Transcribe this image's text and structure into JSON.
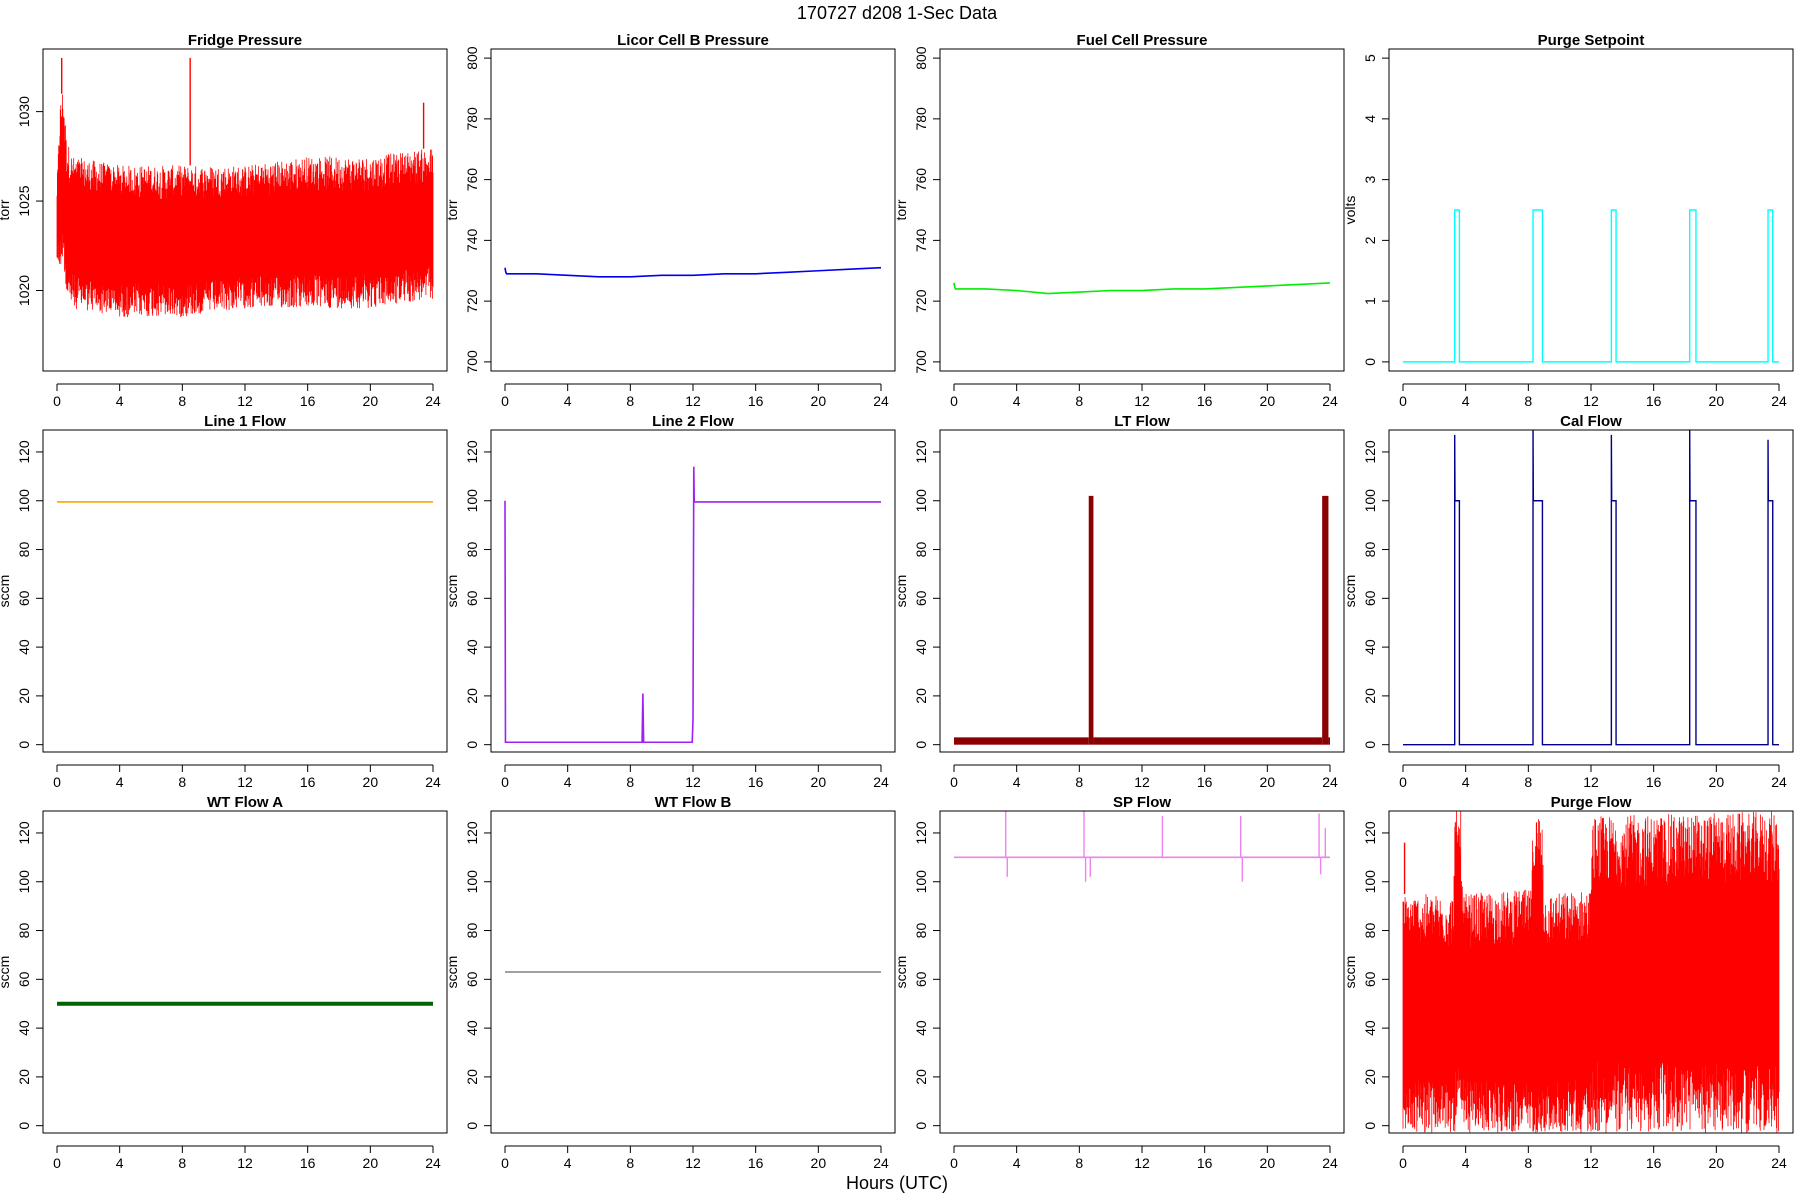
{
  "page": {
    "title": "170727   d208   1-Sec Data",
    "xlabel": "Hours (UTC)"
  },
  "chart_data": [
    {
      "type": "line",
      "title": "Fridge Pressure",
      "ylabel": "torr",
      "xlim": [
        0,
        24
      ],
      "xticks": [
        0,
        4,
        8,
        12,
        16,
        20,
        24
      ],
      "ylim": [
        1015.5,
        1033.5
      ],
      "yticks": [
        1020,
        1025,
        1030
      ],
      "color": "#ff0000",
      "style": "noise",
      "series": [
        {
          "x": [
            0,
            0.2,
            0.4,
            0.6,
            1,
            4,
            8,
            12,
            16,
            20,
            24
          ],
          "low": [
            1021.5,
            1021.0,
            1022.0,
            1019.5,
            1019.0,
            1018.5,
            1018.5,
            1019.0,
            1019.0,
            1019.0,
            1019.5
          ],
          "high": [
            1026.0,
            1030.5,
            1031.5,
            1028.5,
            1027.5,
            1027.0,
            1027.0,
            1027.0,
            1027.5,
            1027.5,
            1028.0
          ]
        }
      ],
      "spikes": [
        {
          "x": 8.5,
          "y": 1033.0
        },
        {
          "x": 0.3,
          "y": 1033.0
        },
        {
          "x": 23.4,
          "y": 1030.5
        }
      ]
    },
    {
      "type": "line",
      "title": "Licor Cell B Pressure",
      "ylabel": "torr",
      "xlim": [
        0,
        24
      ],
      "xticks": [
        0,
        4,
        8,
        12,
        16,
        20,
        24
      ],
      "ylim": [
        697,
        803
      ],
      "yticks": [
        700,
        720,
        740,
        760,
        780,
        800
      ],
      "color": "#0000ee",
      "style": "line",
      "series": [
        {
          "x": [
            0,
            0.05,
            0.1,
            2,
            4,
            6,
            8,
            10,
            12,
            14,
            16,
            18,
            20,
            22,
            24
          ],
          "y": [
            731,
            729.5,
            729,
            729,
            728.5,
            728,
            728,
            728.5,
            728.5,
            729,
            729,
            729.5,
            730,
            730.5,
            731
          ]
        }
      ]
    },
    {
      "type": "line",
      "title": "Fuel Cell Pressure",
      "ylabel": "torr",
      "xlim": [
        0,
        24
      ],
      "xticks": [
        0,
        4,
        8,
        12,
        16,
        20,
        24
      ],
      "ylim": [
        697,
        803
      ],
      "yticks": [
        700,
        720,
        740,
        760,
        780,
        800
      ],
      "color": "#00ee00",
      "style": "line",
      "series": [
        {
          "x": [
            0,
            0.05,
            0.1,
            2,
            4,
            6,
            8,
            10,
            12,
            14,
            16,
            18,
            20,
            22,
            24
          ],
          "y": [
            726,
            724.5,
            724,
            724,
            723.5,
            722.5,
            723,
            723.5,
            723.5,
            724,
            724,
            724.5,
            725,
            725.5,
            726
          ]
        }
      ]
    },
    {
      "type": "line",
      "title": "Purge Setpoint",
      "ylabel": "volts",
      "xlim": [
        0,
        24
      ],
      "xticks": [
        0,
        4,
        8,
        12,
        16,
        20,
        24
      ],
      "ylim": [
        -0.15,
        5.15
      ],
      "yticks": [
        0,
        1,
        2,
        3,
        4,
        5
      ],
      "color": "#00ffff",
      "style": "pulses",
      "base": 0,
      "pulses": [
        {
          "x0": 3.3,
          "x1": 3.6,
          "y": 2.5
        },
        {
          "x0": 8.3,
          "x1": 8.9,
          "y": 2.5
        },
        {
          "x0": 13.3,
          "x1": 13.6,
          "y": 2.5
        },
        {
          "x0": 18.3,
          "x1": 18.7,
          "y": 2.5
        },
        {
          "x0": 23.3,
          "x1": 23.6,
          "y": 2.5
        }
      ]
    },
    {
      "type": "line",
      "title": "Line 1 Flow",
      "ylabel": "sccm",
      "xlim": [
        0,
        24
      ],
      "xticks": [
        0,
        4,
        8,
        12,
        16,
        20,
        24
      ],
      "ylim": [
        -3,
        129
      ],
      "yticks": [
        0,
        20,
        40,
        60,
        80,
        100,
        120
      ],
      "color": "#ffa500",
      "style": "line",
      "series": [
        {
          "x": [
            0,
            24
          ],
          "y": [
            99.5,
            99.5
          ]
        }
      ]
    },
    {
      "type": "line",
      "title": "Line 2 Flow",
      "ylabel": "sccm",
      "xlim": [
        0,
        24
      ],
      "xticks": [
        0,
        4,
        8,
        12,
        16,
        20,
        24
      ],
      "ylim": [
        -3,
        129
      ],
      "yticks": [
        0,
        20,
        40,
        60,
        80,
        100,
        120
      ],
      "color": "#a020f0",
      "style": "line",
      "series": [
        {
          "x": [
            0,
            0.03,
            0.06,
            8.75,
            8.8,
            8.85,
            8.9,
            11.95,
            12.0,
            12.05,
            12.08,
            24
          ],
          "y": [
            100,
            1,
            1,
            1,
            21,
            1,
            1,
            1,
            10,
            114,
            99.5,
            99.5
          ]
        }
      ]
    },
    {
      "type": "line",
      "title": "LT Flow",
      "ylabel": "sccm",
      "xlim": [
        0,
        24
      ],
      "xticks": [
        0,
        4,
        8,
        12,
        16,
        20,
        24
      ],
      "ylim": [
        -3,
        129
      ],
      "yticks": [
        0,
        20,
        40,
        60,
        80,
        100,
        120
      ],
      "color": "#8b0000",
      "style": "band",
      "bands": [
        {
          "x0": 0,
          "x1": 8.6,
          "y0": 0,
          "y1": 3
        },
        {
          "x0": 8.6,
          "x1": 8.9,
          "y0": 0,
          "y1": 102
        },
        {
          "x0": 8.9,
          "x1": 23.5,
          "y0": 0,
          "y1": 3
        },
        {
          "x0": 23.5,
          "x1": 23.9,
          "y0": 0,
          "y1": 102
        },
        {
          "x0": 23.9,
          "x1": 24,
          "y0": 0,
          "y1": 3
        }
      ]
    },
    {
      "type": "line",
      "title": "Cal Flow",
      "ylabel": "sccm",
      "xlim": [
        0,
        24
      ],
      "xticks": [
        0,
        4,
        8,
        12,
        16,
        20,
        24
      ],
      "ylim": [
        -3,
        129
      ],
      "yticks": [
        0,
        20,
        40,
        60,
        80,
        100,
        120
      ],
      "color": "#00008b",
      "style": "pulses",
      "base": 0,
      "pulses": [
        {
          "x0": 3.3,
          "x1": 3.6,
          "y": 100,
          "spike": 127
        },
        {
          "x0": 8.3,
          "x1": 8.9,
          "y": 100,
          "spike": 129
        },
        {
          "x0": 13.3,
          "x1": 13.6,
          "y": 100,
          "spike": 127
        },
        {
          "x0": 18.3,
          "x1": 18.7,
          "y": 100,
          "spike": 129
        },
        {
          "x0": 23.3,
          "x1": 23.6,
          "y": 100,
          "spike": 125
        }
      ]
    },
    {
      "type": "line",
      "title": "WT Flow A",
      "ylabel": "sccm",
      "xlim": [
        0,
        24
      ],
      "xticks": [
        0,
        4,
        8,
        12,
        16,
        20,
        24
      ],
      "ylim": [
        -3,
        129
      ],
      "yticks": [
        0,
        20,
        40,
        60,
        80,
        100,
        120
      ],
      "color": "#006400",
      "style": "thick",
      "series": [
        {
          "x": [
            0,
            24
          ],
          "y": [
            50,
            50
          ]
        }
      ]
    },
    {
      "type": "line",
      "title": "WT Flow B",
      "ylabel": "sccm",
      "xlim": [
        0,
        24
      ],
      "xticks": [
        0,
        4,
        8,
        12,
        16,
        20,
        24
      ],
      "ylim": [
        -3,
        129
      ],
      "yticks": [
        0,
        20,
        40,
        60,
        80,
        100,
        120
      ],
      "color": "#808080",
      "style": "line",
      "series": [
        {
          "x": [
            0,
            24
          ],
          "y": [
            63,
            63
          ]
        }
      ]
    },
    {
      "type": "line",
      "title": "SP Flow",
      "ylabel": "sccm",
      "xlim": [
        0,
        24
      ],
      "xticks": [
        0,
        4,
        8,
        12,
        16,
        20,
        24
      ],
      "ylim": [
        -3,
        129
      ],
      "yticks": [
        0,
        20,
        40,
        60,
        80,
        100,
        120
      ],
      "color": "#ee82ee",
      "style": "line",
      "series": [
        {
          "x": [
            0,
            24
          ],
          "y": [
            110,
            110
          ]
        }
      ],
      "spikes": [
        {
          "x": 3.3,
          "y": 129
        },
        {
          "x": 8.3,
          "y": 129
        },
        {
          "x": 13.3,
          "y": 127
        },
        {
          "x": 18.3,
          "y": 127
        },
        {
          "x": 23.3,
          "y": 128
        },
        {
          "x": 23.7,
          "y": 122
        }
      ],
      "dips": [
        {
          "x": 3.4,
          "y": 102
        },
        {
          "x": 8.4,
          "y": 100
        },
        {
          "x": 8.7,
          "y": 102
        },
        {
          "x": 18.4,
          "y": 100
        },
        {
          "x": 23.4,
          "y": 103
        }
      ]
    },
    {
      "type": "line",
      "title": "Purge Flow",
      "ylabel": "sccm",
      "xlim": [
        0,
        24
      ],
      "xticks": [
        0,
        4,
        8,
        12,
        16,
        20,
        24
      ],
      "ylim": [
        -3,
        129
      ],
      "yticks": [
        0,
        20,
        40,
        60,
        80,
        100,
        120
      ],
      "color": "#ff0000",
      "style": "noise",
      "series": [
        {
          "x": [
            0,
            3.2,
            3.3,
            3.7,
            3.8,
            8.2,
            8.3,
            8.9,
            9.0,
            12.0,
            12.1,
            24
          ],
          "low": [
            -3,
            -3,
            -3,
            -3,
            -3,
            -3,
            -3,
            -3,
            -3,
            -3,
            -3,
            -3
          ],
          "high": [
            95,
            95,
            129,
            129,
            95,
            97,
            129,
            129,
            95,
            97,
            127,
            129
          ]
        }
      ],
      "spikes": [
        {
          "x": 0.1,
          "y": 116
        }
      ]
    }
  ]
}
